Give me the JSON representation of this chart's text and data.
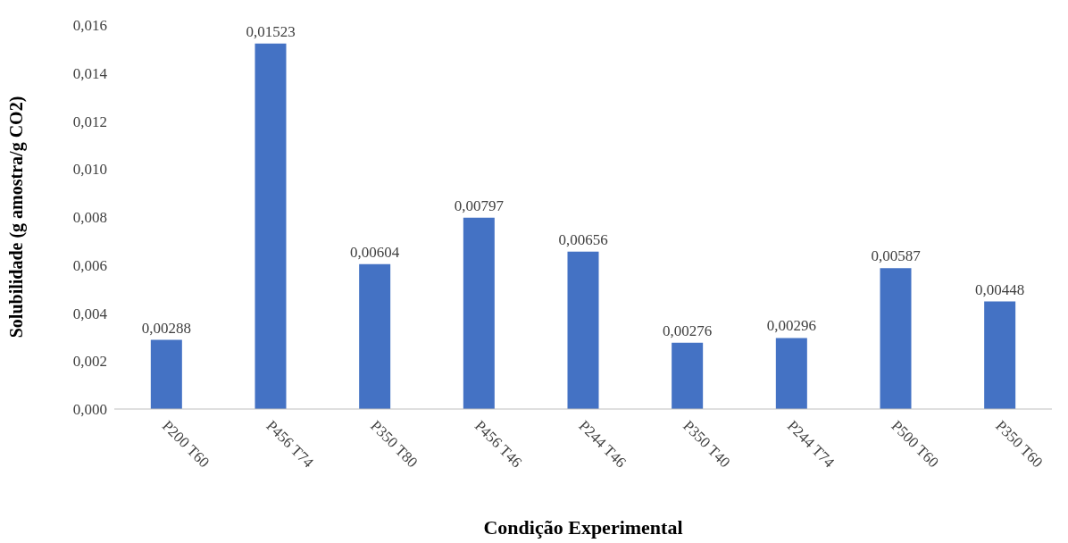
{
  "chart_data": {
    "type": "bar",
    "xlabel": "Condição Experimental",
    "ylabel": "Solubilidade (g amostra/g CO2)",
    "categories": [
      "P200 T60",
      "P456 T74",
      "P350 T80",
      "P456 T46",
      "P244 T46",
      "P350 T40",
      "P244 T74",
      "P500 T60",
      "P350 T60"
    ],
    "values": [
      0.00288,
      0.01523,
      0.00604,
      0.00797,
      0.00656,
      0.00276,
      0.00296,
      0.00587,
      0.00448
    ],
    "value_labels": [
      "0,00288",
      "0,01523",
      "0,00604",
      "0,00797",
      "0,00656",
      "0,00276",
      "0,00296",
      "0,00587",
      "0,00448"
    ],
    "color": "#4472c4",
    "ylim": [
      0,
      0.016
    ],
    "yticks": [
      {
        "value": 0,
        "label": "0,000"
      },
      {
        "value": 0.002,
        "label": "0,002"
      },
      {
        "value": 0.004,
        "label": "0,004"
      },
      {
        "value": 0.006,
        "label": "0,006"
      },
      {
        "value": 0.008,
        "label": "0,008"
      },
      {
        "value": 0.01,
        "label": "0,010"
      },
      {
        "value": 0.012,
        "label": "0,012"
      },
      {
        "value": 0.014,
        "label": "0,014"
      },
      {
        "value": 0.016,
        "label": "0,016"
      }
    ],
    "grid": false,
    "legend": false
  }
}
